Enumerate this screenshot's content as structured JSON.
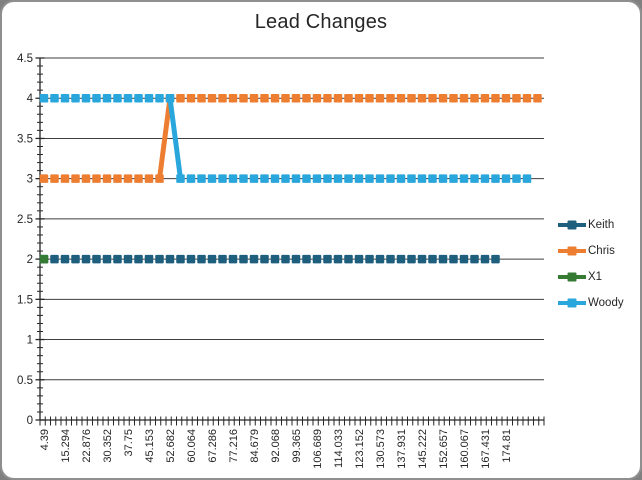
{
  "window": {
    "page_background": "#808080",
    "frame_background": "#ffffff",
    "frame_border": "#8f8f8f"
  },
  "chart_data": {
    "type": "line",
    "title": "Lead Changes",
    "title_color": "#262626",
    "axis_color": "#262626",
    "gridline_color": "#3f3f3f",
    "text_color": "#262626",
    "gridlines": "horizontal-major",
    "legend_position": "right",
    "ylim": [
      0,
      4.5
    ],
    "ytick_step": 0.5,
    "y_minor_tick_step": 0.1,
    "y_tick_labels": [
      "0",
      "0.5",
      "1",
      "1.5",
      "2",
      "2.5",
      "3",
      "3.5",
      "4",
      "4.5"
    ],
    "x_tick_labels": [
      "4.39",
      "15.294",
      "22.876",
      "30.352",
      "37.75",
      "45.153",
      "52.682",
      "60.064",
      "67.286",
      "77.216",
      "84.679",
      "92.068",
      "99.365",
      "106.689",
      "114.033",
      "123.152",
      "130.573",
      "137.931",
      "145.222",
      "152.657",
      "160.067",
      "167.431",
      "174.81"
    ],
    "points_per_label": 2,
    "series": [
      {
        "name": "Keith",
        "color": "#1e5f7e",
        "values": [
          2,
          2,
          2,
          2,
          2,
          2,
          2,
          2,
          2,
          2,
          2,
          2,
          2,
          2,
          2,
          2,
          2,
          2,
          2,
          2,
          2,
          2,
          2,
          2,
          2,
          2,
          2,
          2,
          2,
          2,
          2,
          2,
          2,
          2,
          2,
          2,
          2,
          2,
          2,
          2,
          2,
          2,
          2,
          2,
          null,
          null,
          null,
          null
        ]
      },
      {
        "name": "Chris",
        "color": "#ed7d31",
        "values": [
          3,
          3,
          3,
          3,
          3,
          3,
          3,
          3,
          3,
          3,
          3,
          3,
          4,
          4,
          4,
          4,
          4,
          4,
          4,
          4,
          4,
          4,
          4,
          4,
          4,
          4,
          4,
          4,
          4,
          4,
          4,
          4,
          4,
          4,
          4,
          4,
          4,
          4,
          4,
          4,
          4,
          4,
          4,
          4,
          4,
          4,
          4,
          4
        ]
      },
      {
        "name": "X1",
        "color": "#357b34",
        "values": [
          2,
          null,
          null,
          null,
          null,
          null,
          null,
          null,
          null,
          null,
          null,
          null,
          null,
          null,
          null,
          null,
          null,
          null,
          null,
          null,
          null,
          null,
          null,
          null,
          null,
          null,
          null,
          null,
          null,
          null,
          null,
          null,
          null,
          null,
          null,
          null,
          null,
          null,
          null,
          null,
          null,
          null,
          null,
          null,
          null,
          null,
          null,
          null
        ]
      },
      {
        "name": "Woody",
        "color": "#29a7dd",
        "values": [
          4,
          4,
          4,
          4,
          4,
          4,
          4,
          4,
          4,
          4,
          4,
          4,
          4,
          3,
          3,
          3,
          3,
          3,
          3,
          3,
          3,
          3,
          3,
          3,
          3,
          3,
          3,
          3,
          3,
          3,
          3,
          3,
          3,
          3,
          3,
          3,
          3,
          3,
          3,
          3,
          3,
          3,
          3,
          3,
          3,
          3,
          3,
          null
        ]
      }
    ]
  }
}
